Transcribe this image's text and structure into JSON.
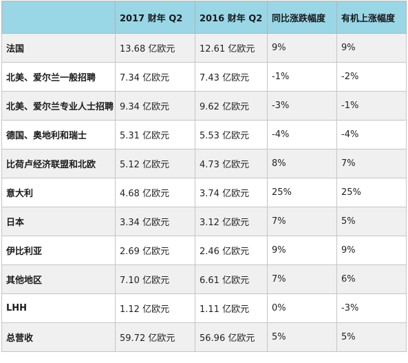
{
  "headers": [
    "",
    "2017 财年  Q2",
    "2016 财年 Q2",
    "同比涨跌幅度",
    "有机上涨幅度"
  ],
  "rows": [
    [
      "法国",
      "13.68 亿欧元",
      "12.61 亿欧元",
      "9%",
      "9%"
    ],
    [
      "北美、爱尔兰一般招聘",
      "7.34 亿欧元",
      "7.43 亿欧元",
      "-1%",
      "-2%"
    ],
    [
      "北美、爱尔兰专业人士招聘",
      "9.34 亿欧元",
      "9.62 亿欧元",
      "-3%",
      "-1%"
    ],
    [
      "德国、奥地利和瑞士",
      "5.31 亿欧元",
      "5.53 亿欧元",
      "-4%",
      "-4%"
    ],
    [
      "比荷卢经济联盟和北欧",
      "5.12 亿欧元",
      "4.73 亿欧元",
      "8%",
      "7%"
    ],
    [
      "意大利",
      "4.68 亿欧元",
      "3.74 亿欧元",
      "25%",
      "25%"
    ],
    [
      "日本",
      "3.34 亿欧元",
      "3.12 亿欧元",
      "7%",
      "5%"
    ],
    [
      "伊比利亚",
      "2.69 亿欧元",
      "2.46 亿欧元",
      "9%",
      "9%"
    ],
    [
      "其他地区",
      "7.10 亿欧元",
      "6.61 亿欧元",
      "7%",
      "6%"
    ],
    [
      "LHH",
      "1.12 亿欧元",
      "1.11 亿欧元",
      "0%",
      "-3%"
    ],
    [
      "总营收",
      "59.72 亿欧元",
      "56.96 亿欧元",
      "5%",
      "5%"
    ]
  ],
  "colors": {
    "header_bg": "#99d6e6",
    "stripe_bg": "#f0f0f0",
    "row_bg": "#ffffff",
    "border": "#c4c4c4"
  }
}
